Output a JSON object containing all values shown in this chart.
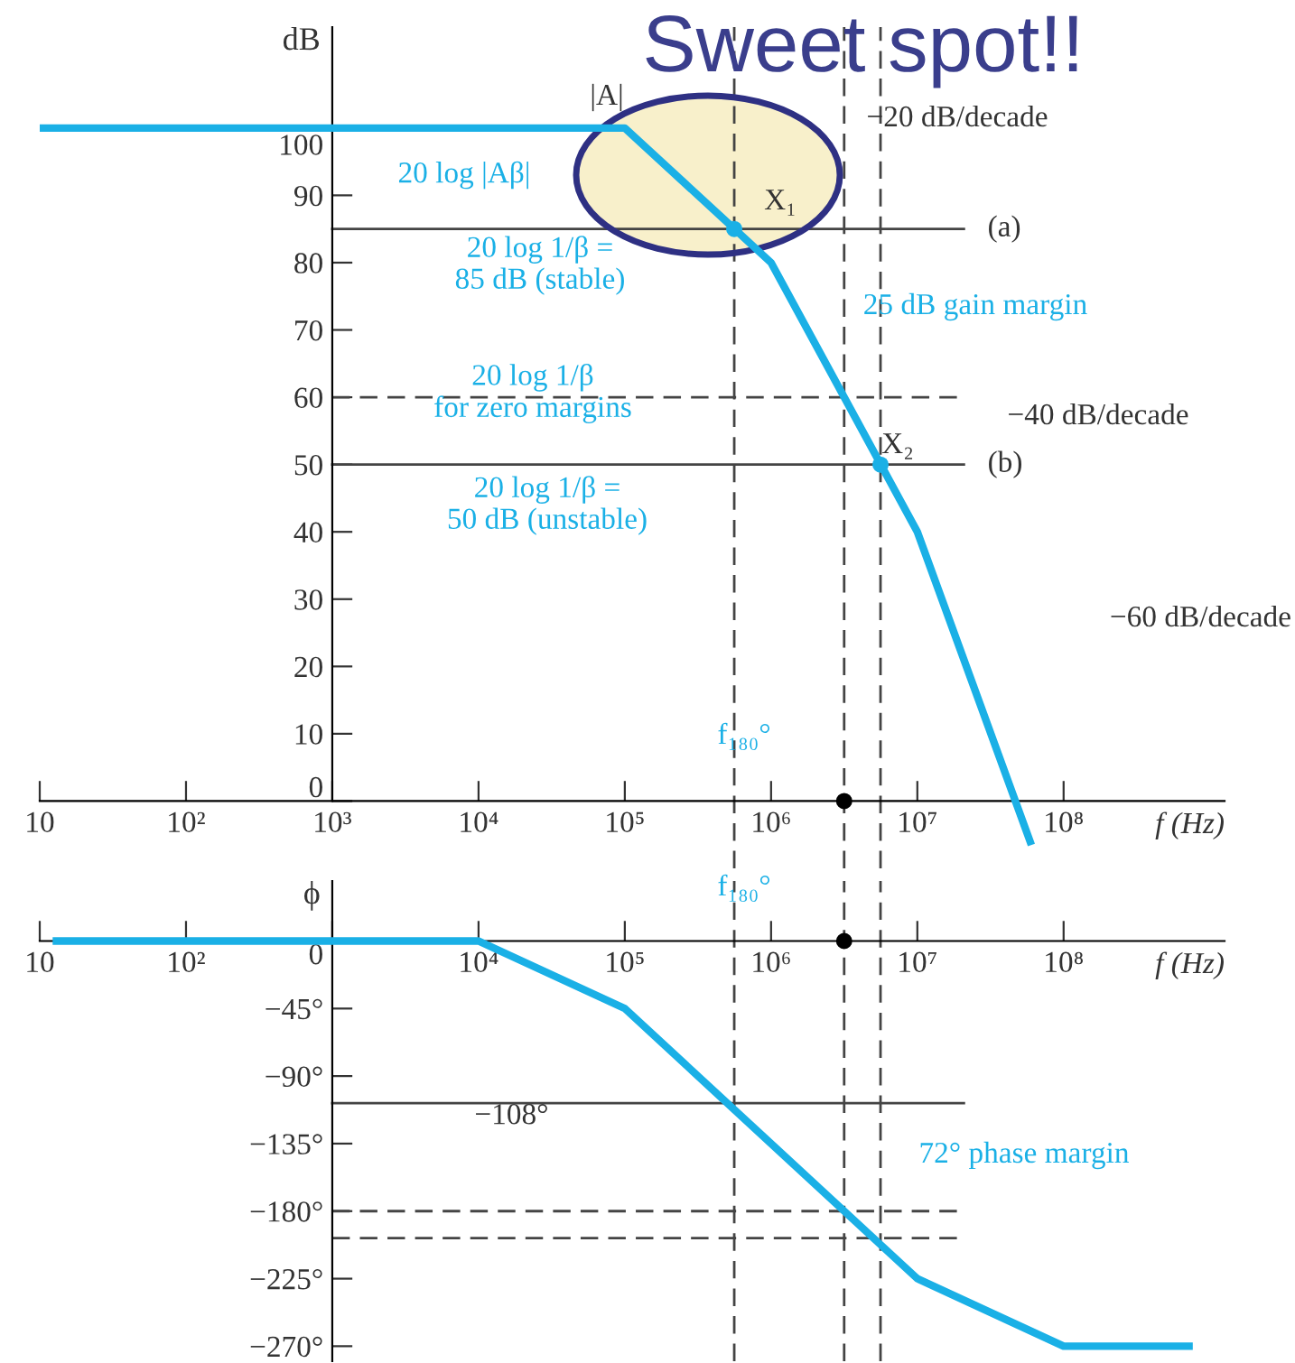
{
  "chart_data": [
    {
      "type": "line",
      "title": "Sweet spot!!",
      "ylabel": "dB",
      "xlabel": "f (Hz)",
      "log": "x",
      "grid": false,
      "xlim": [
        10,
        1260000000
      ],
      "ylim": [
        -10,
        115
      ],
      "xticks": [
        {
          "value": 10,
          "label": "10"
        },
        {
          "value": 100,
          "label": "10²"
        },
        {
          "value": 1000,
          "label": "10³"
        },
        {
          "value": 10000,
          "label": "10⁴"
        },
        {
          "value": 100000,
          "label": "10⁵"
        },
        {
          "value": 1000000,
          "label": "10⁶"
        },
        {
          "value": 10000000,
          "label": "10⁷"
        },
        {
          "value": 100000000,
          "label": "10⁸"
        }
      ],
      "yticks": [
        0,
        10,
        20,
        30,
        40,
        50,
        60,
        70,
        80,
        90,
        100
      ],
      "series": [
        {
          "color": "#1ab0e6",
          "x": [
            10,
            100000,
            1000000,
            10000000,
            59000000
          ],
          "values": [
            100,
            100,
            80,
            40,
            -6
          ]
        },
        {
          "type": "scatter",
          "color": "#1ab0e6",
          "x": [
            560000,
            5600000
          ],
          "values": [
            85,
            50
          ]
        },
        {
          "type": "scatter",
          "color": "#000000",
          "x": [
            3160000
          ],
          "values": [
            0
          ]
        }
      ],
      "ref_lines": [
        {
          "axis": "y",
          "value": 85,
          "label": "(a)",
          "color": "#444444",
          "line_style": "solid"
        },
        {
          "axis": "y",
          "value": 50,
          "label": "(b)",
          "color": "#444444",
          "line_style": "solid"
        },
        {
          "axis": "y",
          "value": 60,
          "color": "#444444",
          "line_style": "dashed"
        },
        {
          "axis": "x",
          "value": 560000,
          "color": "#444444",
          "line_style": "dashed"
        },
        {
          "axis": "x",
          "value": 3160000,
          "color": "#444444",
          "line_style": "dashed"
        },
        {
          "axis": "x",
          "value": 5600000,
          "color": "#444444",
          "line_style": "dashed"
        }
      ],
      "annotations": [
        "|A|",
        "−20 dB/decade",
        "20 log |Aβ|",
        "X₁",
        "20 log 1/β =\n85 dB (stable)",
        "25 dB gain margin",
        "20 log 1/β\nfor zero margins",
        "−40 dB/decade",
        "X₂",
        "20 log 1/β =\n50 dB (unstable)",
        "−60 dB/decade",
        "f₁₈₀°"
      ]
    },
    {
      "type": "line",
      "ylabel": "ϕ",
      "xlabel": "f (Hz)",
      "log": "x",
      "grid": false,
      "xlim": [
        10,
        1260000000
      ],
      "ylim": [
        -280,
        40
      ],
      "xticks": [
        {
          "value": 10,
          "label": "10"
        },
        {
          "value": 100,
          "label": "10²"
        },
        {
          "value": 1000,
          "label": null
        },
        {
          "value": 10000,
          "label": "10⁴"
        },
        {
          "value": 100000,
          "label": "10⁵"
        },
        {
          "value": 1000000,
          "label": "10⁶"
        },
        {
          "value": 10000000,
          "label": "10⁷"
        },
        {
          "value": 100000000,
          "label": "10⁸"
        }
      ],
      "yticks": [
        0,
        {
          "value": -45,
          "label": "−45°"
        },
        {
          "value": -90,
          "label": "−90°"
        },
        {
          "value": -135,
          "label": "−135°"
        },
        {
          "value": -180,
          "label": "−180°"
        },
        {
          "value": -225,
          "label": "−225°"
        },
        {
          "value": -270,
          "label": "−270°"
        }
      ],
      "series": [
        {
          "color": "#1ab0e6",
          "x": [
            13,
            10000,
            100000,
            10000000,
            100000000,
            720000000
          ],
          "values": [
            0,
            0,
            -45,
            -225,
            -270,
            -270
          ]
        },
        {
          "type": "scatter",
          "color": "#000000",
          "x": [
            3160000
          ],
          "values": [
            0
          ]
        }
      ],
      "ref_lines": [
        {
          "axis": "y",
          "value": -108,
          "label": "−108°",
          "color": "#444444",
          "line_style": "solid"
        },
        {
          "axis": "y",
          "value": -180,
          "color": "#444444",
          "line_style": "dashed"
        },
        {
          "axis": "y",
          "value": -198,
          "color": "#444444",
          "line_style": "dashed"
        },
        {
          "axis": "x",
          "value": 560000,
          "color": "#444444",
          "line_style": "dashed"
        },
        {
          "axis": "x",
          "value": 3160000,
          "color": "#444444",
          "line_style": "dashed"
        },
        {
          "axis": "x",
          "value": 5600000,
          "color": "#444444",
          "line_style": "dashed"
        }
      ],
      "annotations": [
        "f₁₈₀°",
        "72° phase margin"
      ]
    }
  ]
}
